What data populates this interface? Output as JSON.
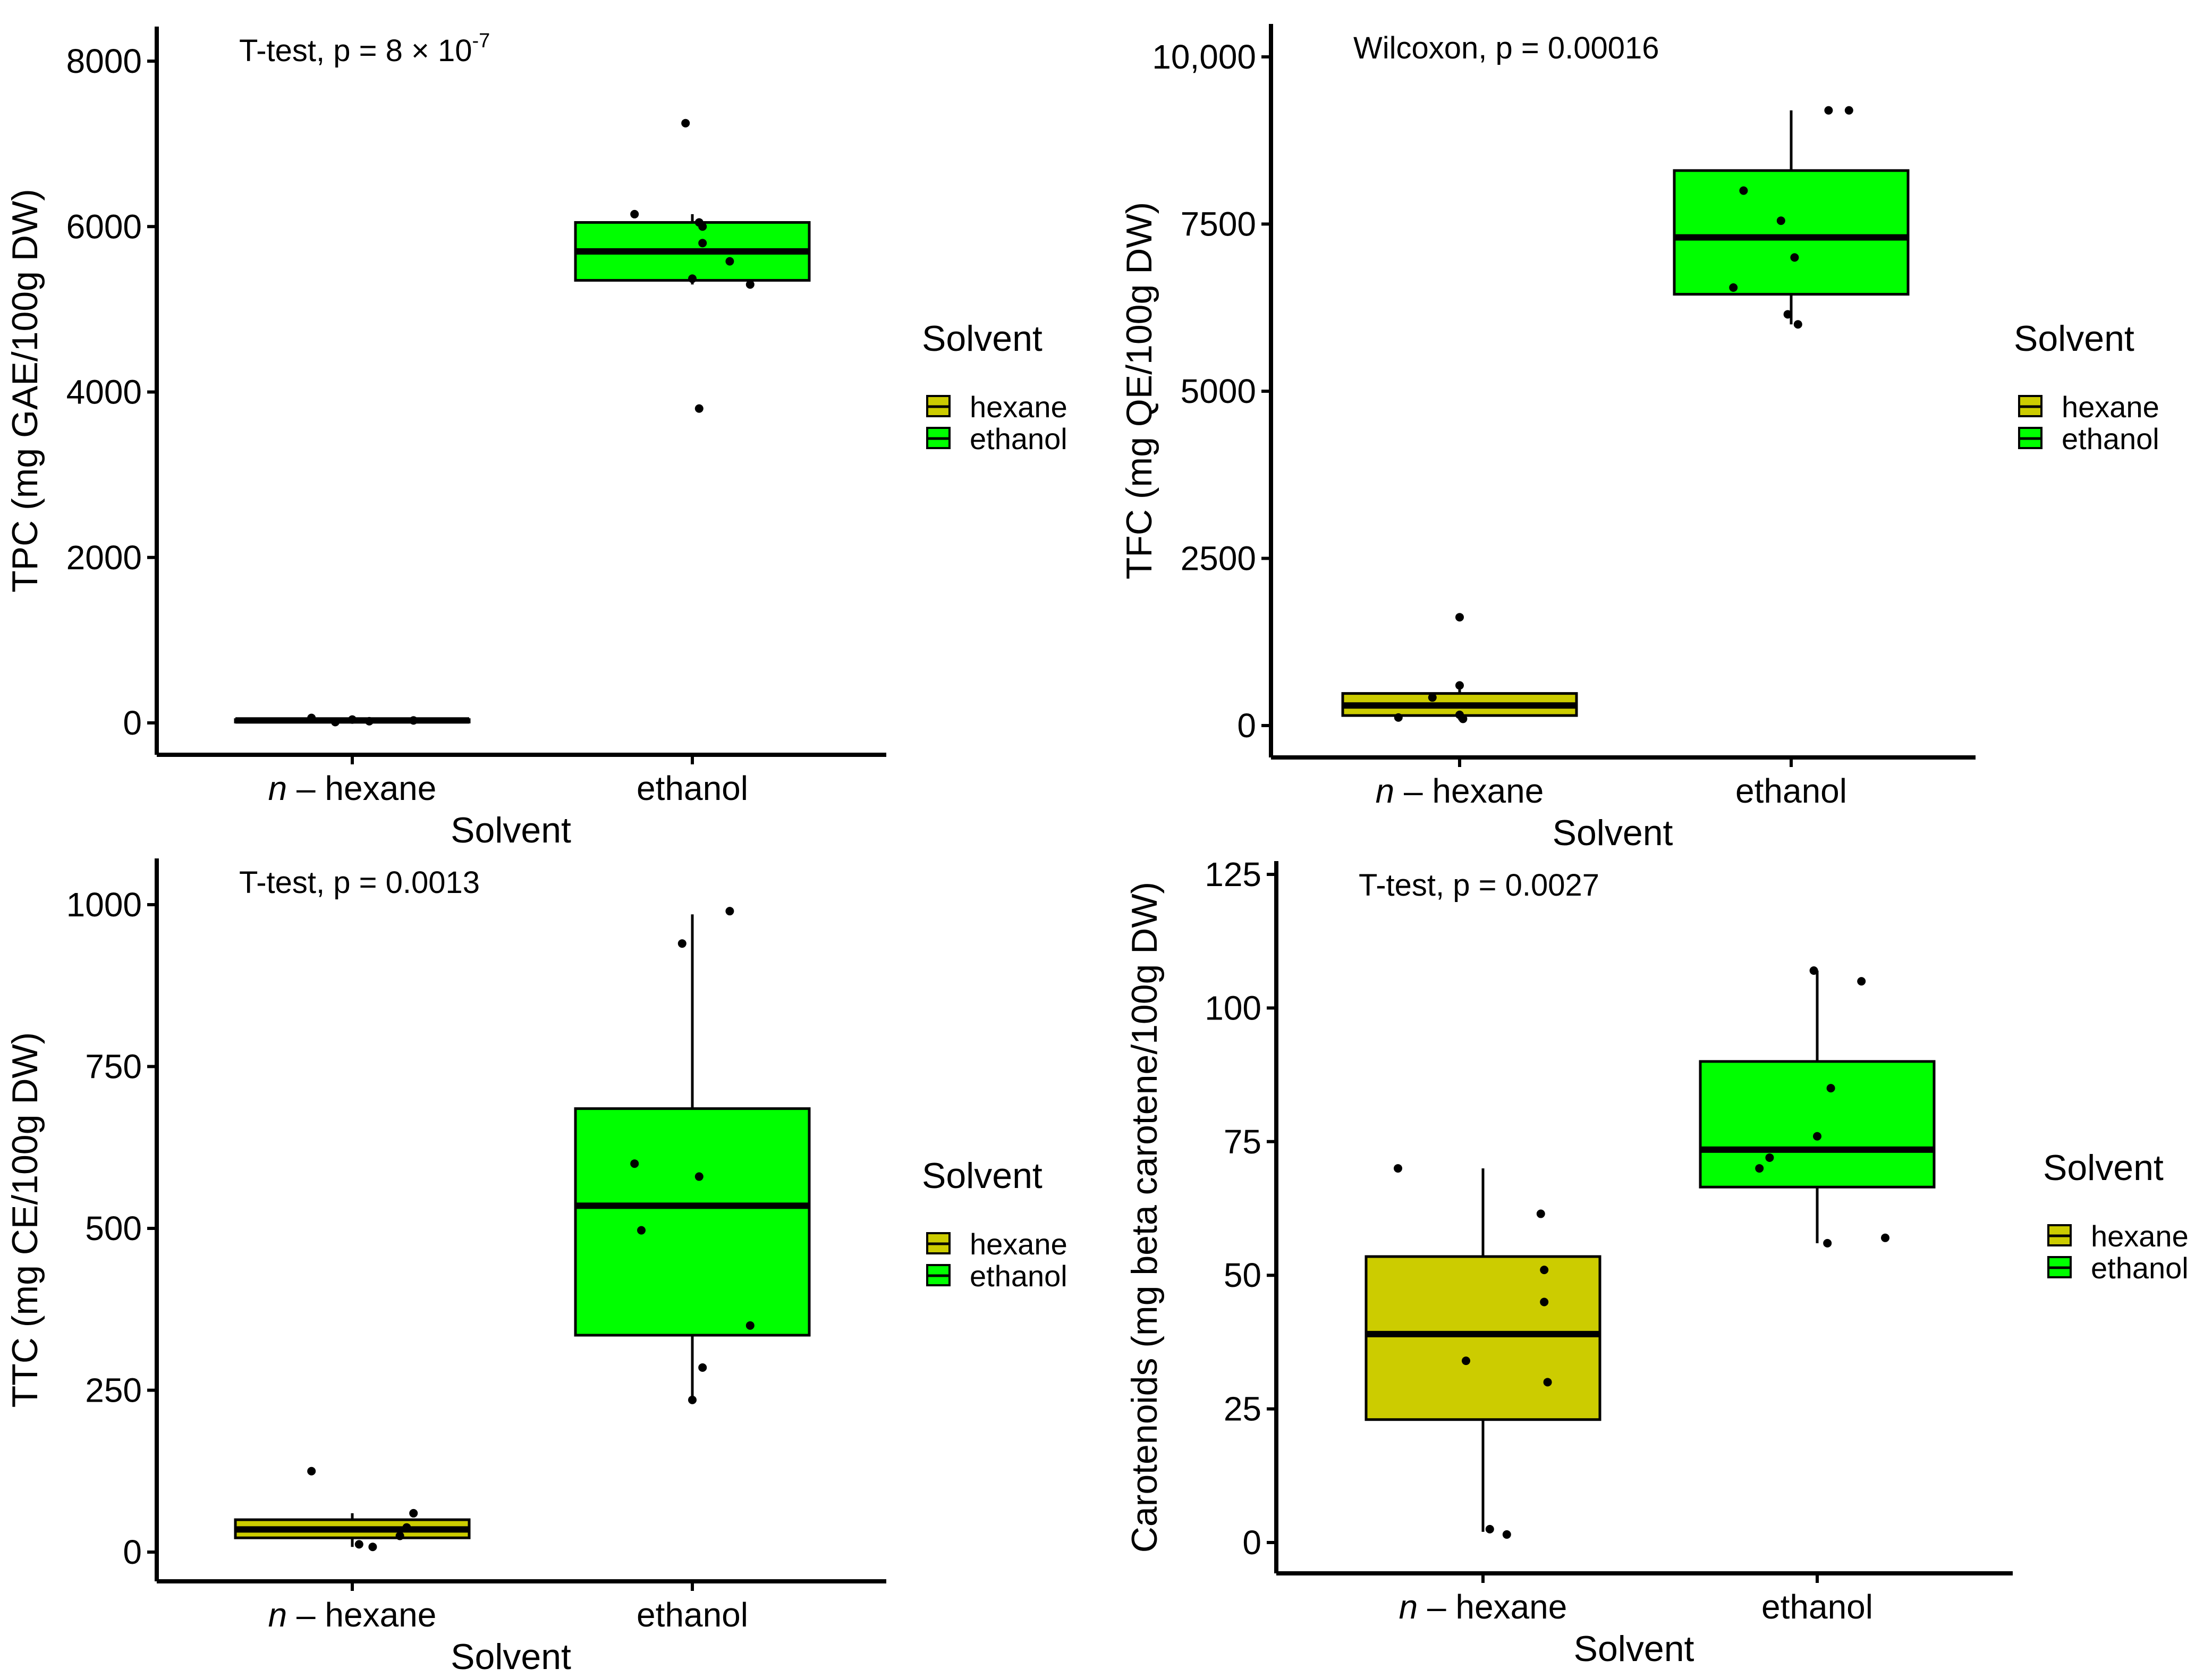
{
  "legend": {
    "title": "Solvent",
    "items": [
      {
        "label": "hexane",
        "color": "#CCCC00"
      },
      {
        "label": "ethanol",
        "color": "#00FF00"
      }
    ]
  },
  "chart_data": [
    {
      "type": "boxplot",
      "annotation": {
        "prefix": "T-test, p = 8 × 10",
        "exponent": "-7"
      },
      "xlabel": "Solvent",
      "ylabel": "TPC (mg GAE/100g DW)",
      "ylim": [
        -400,
        8400
      ],
      "yticks": [
        0,
        2000,
        4000,
        6000,
        8000
      ],
      "ytick_labels": [
        "0",
        "2000",
        "4000",
        "6000",
        "8000"
      ],
      "categories": [
        {
          "prefix": "n",
          "label": " – hexane"
        },
        {
          "prefix": "",
          "label": "ethanol"
        }
      ],
      "groups": [
        {
          "name": "hexane",
          "color": "#CCCC00",
          "q1": 10,
          "median": 30,
          "q3": 40,
          "lower": 0,
          "upper": 80,
          "points": [
            [
              -0.12,
              60
            ],
            [
              -0.05,
              10
            ],
            [
              0.05,
              20
            ],
            [
              0.18,
              30
            ],
            [
              0.0,
              40
            ]
          ]
        },
        {
          "name": "ethanol",
          "color": "#00FF00",
          "q1": 5350,
          "median": 5700,
          "q3": 6050,
          "lower": 5300,
          "upper": 6150,
          "points": [
            [
              -0.17,
              6150
            ],
            [
              -0.02,
              7250
            ],
            [
              0.0,
              5370
            ],
            [
              0.02,
              3800
            ],
            [
              0.02,
              6050
            ],
            [
              0.03,
              6000
            ],
            [
              0.03,
              5800
            ],
            [
              0.11,
              5580
            ],
            [
              0.17,
              5300
            ]
          ]
        }
      ]
    },
    {
      "type": "boxplot",
      "annotation": {
        "prefix": "Wilcoxon, p = 0.00016",
        "exponent": ""
      },
      "xlabel": "Solvent",
      "ylabel": "TFC (mg QE/100g DW)",
      "ylim": [
        -500,
        10500
      ],
      "yticks": [
        0,
        2500,
        5000,
        7500,
        10000
      ],
      "ytick_labels": [
        "0",
        "2500",
        "5000",
        "7500",
        "10,000"
      ],
      "categories": [
        {
          "prefix": "n",
          "label": " – hexane"
        },
        {
          "prefix": "",
          "label": "ethanol"
        }
      ],
      "groups": [
        {
          "name": "hexane",
          "color": "#CCCC00",
          "q1": 150,
          "median": 300,
          "q3": 480,
          "lower": 80,
          "upper": 620,
          "points": [
            [
              -0.18,
              120
            ],
            [
              -0.08,
              420
            ],
            [
              0.0,
              1620
            ],
            [
              0.0,
              600
            ],
            [
              0.0,
              160
            ],
            [
              0.01,
              100
            ]
          ]
        },
        {
          "name": "ethanol",
          "color": "#00FF00",
          "q1": 6450,
          "median": 7300,
          "q3": 8300,
          "lower": 6000,
          "upper": 9200,
          "points": [
            [
              -0.17,
              6550
            ],
            [
              -0.14,
              8000
            ],
            [
              -0.03,
              7550
            ],
            [
              -0.01,
              6150
            ],
            [
              0.01,
              7000
            ],
            [
              0.02,
              6000
            ],
            [
              0.11,
              9200
            ],
            [
              0.17,
              9200
            ]
          ]
        }
      ]
    },
    {
      "type": "boxplot",
      "annotation": {
        "prefix": "T-test, p = 0.0013",
        "exponent": ""
      },
      "xlabel": "Solvent",
      "ylabel": "TTC (mg CE/100g DW)",
      "ylim": [
        -45,
        1045
      ],
      "yticks": [
        0,
        250,
        500,
        750,
        1000
      ],
      "ytick_labels": [
        "0",
        "250",
        "500",
        "750",
        "1000"
      ],
      "categories": [
        {
          "prefix": "n",
          "label": " – hexane"
        },
        {
          "prefix": "",
          "label": "ethanol"
        }
      ],
      "groups": [
        {
          "name": "hexane",
          "color": "#CCCC00",
          "q1": 22,
          "median": 35,
          "q3": 50,
          "lower": 8,
          "upper": 60,
          "points": [
            [
              -0.12,
              125
            ],
            [
              0.02,
              12
            ],
            [
              0.06,
              8
            ],
            [
              0.16,
              38
            ],
            [
              0.18,
              60
            ],
            [
              0.14,
              25
            ]
          ]
        },
        {
          "name": "ethanol",
          "color": "#00FF00",
          "q1": 335,
          "median": 535,
          "q3": 685,
          "lower": 235,
          "upper": 985,
          "points": [
            [
              -0.17,
              600
            ],
            [
              -0.15,
              497
            ],
            [
              -0.03,
              940
            ],
            [
              0.0,
              235
            ],
            [
              0.02,
              580
            ],
            [
              0.03,
              285
            ],
            [
              0.11,
              990
            ],
            [
              0.17,
              350
            ]
          ]
        }
      ]
    },
    {
      "type": "boxplot",
      "annotation": {
        "prefix": "T-test, p = 0.0027",
        "exponent": ""
      },
      "xlabel": "Solvent",
      "ylabel": "Carotenoids (mg beta carotene/100g DW)",
      "ylim": [
        -5,
        127
      ],
      "yticks": [
        0,
        25,
        50,
        75,
        100,
        125
      ],
      "ytick_labels": [
        "0",
        "25",
        "50",
        "75",
        "100",
        "125"
      ],
      "categories": [
        {
          "prefix": "n",
          "label": " – hexane"
        },
        {
          "prefix": "",
          "label": "ethanol"
        }
      ],
      "groups": [
        {
          "name": "hexane",
          "color": "#CCCC00",
          "q1": 23,
          "median": 39,
          "q3": 53.5,
          "lower": 2,
          "upper": 70,
          "points": [
            [
              -0.25,
              70
            ],
            [
              -0.05,
              34
            ],
            [
              0.02,
              2.5
            ],
            [
              0.07,
              1.5
            ],
            [
              0.17,
              61.5
            ],
            [
              0.18,
              51
            ],
            [
              0.18,
              45
            ],
            [
              0.19,
              30
            ]
          ]
        },
        {
          "name": "ethanol",
          "color": "#00FF00",
          "q1": 66.5,
          "median": 73.5,
          "q3": 90,
          "lower": 56,
          "upper": 107,
          "points": [
            [
              -0.17,
              70
            ],
            [
              -0.14,
              72
            ],
            [
              -0.01,
              107
            ],
            [
              0.0,
              76
            ],
            [
              0.03,
              56
            ],
            [
              0.04,
              85
            ],
            [
              0.13,
              105
            ],
            [
              0.2,
              57
            ]
          ]
        }
      ]
    }
  ]
}
